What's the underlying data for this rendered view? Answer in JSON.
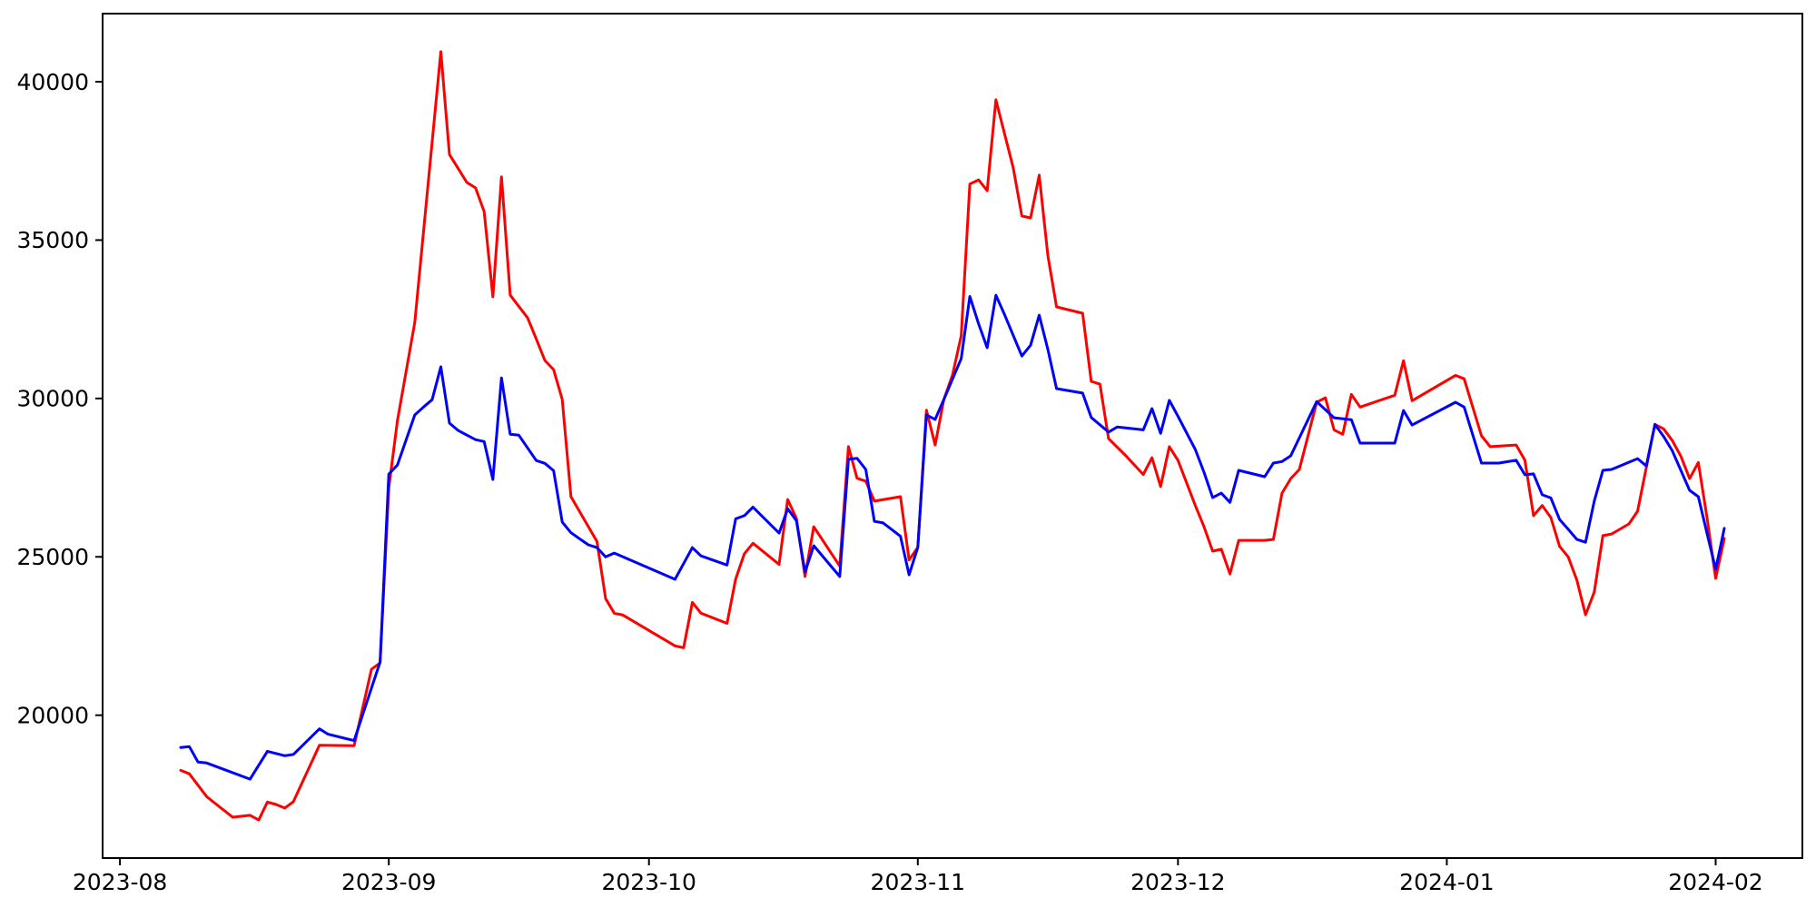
{
  "figure": {
    "background": "#ffffff",
    "plot_border_color": "#000000"
  },
  "chart_data": {
    "type": "line",
    "title": "",
    "xlabel": "",
    "ylabel": "",
    "grid": false,
    "legend": "none",
    "x_axis": {
      "tick_labels": [
        "2023-08",
        "2023-09",
        "2023-10",
        "2023-11",
        "2023-12",
        "2024-01",
        "2024-02"
      ],
      "tick_dates": [
        "2023-08-01",
        "2023-09-01",
        "2023-10-01",
        "2023-11-01",
        "2023-12-01",
        "2024-01-01",
        "2024-02-01"
      ],
      "range_dates": [
        "2023-07-30",
        "2024-02-11"
      ]
    },
    "y_axis": {
      "ticks": [
        20000,
        25000,
        30000,
        35000,
        40000
      ],
      "range": [
        15490,
        42150
      ]
    },
    "series": [
      {
        "name": "red-series",
        "color": "#ff0000",
        "points": [
          [
            "2023-08-08",
            18260
          ],
          [
            "2023-08-09",
            18150
          ],
          [
            "2023-08-11",
            17430
          ],
          [
            "2023-08-12",
            17210
          ],
          [
            "2023-08-14",
            16780
          ],
          [
            "2023-08-16",
            16840
          ],
          [
            "2023-08-17",
            16690
          ],
          [
            "2023-08-18",
            17260
          ],
          [
            "2023-08-19",
            17180
          ],
          [
            "2023-08-20",
            17070
          ],
          [
            "2023-08-21",
            17270
          ],
          [
            "2023-08-24",
            19050
          ],
          [
            "2023-08-28",
            19040
          ],
          [
            "2023-08-30",
            21450
          ],
          [
            "2023-08-31",
            21650
          ],
          [
            "2023-09-01",
            27180
          ],
          [
            "2023-09-02",
            29300
          ],
          [
            "2023-09-04",
            32400
          ],
          [
            "2023-09-07",
            40950
          ],
          [
            "2023-09-08",
            37700
          ],
          [
            "2023-09-09",
            37260
          ],
          [
            "2023-09-10",
            36820
          ],
          [
            "2023-09-11",
            36650
          ],
          [
            "2023-09-12",
            35900
          ],
          [
            "2023-09-13",
            33210
          ],
          [
            "2023-09-14",
            37000
          ],
          [
            "2023-09-15",
            33260
          ],
          [
            "2023-09-17",
            32550
          ],
          [
            "2023-09-18",
            31880
          ],
          [
            "2023-09-19",
            31200
          ],
          [
            "2023-09-20",
            30910
          ],
          [
            "2023-09-21",
            29970
          ],
          [
            "2023-09-22",
            26900
          ],
          [
            "2023-09-23",
            26430
          ],
          [
            "2023-09-25",
            25490
          ],
          [
            "2023-09-26",
            23680
          ],
          [
            "2023-09-27",
            23220
          ],
          [
            "2023-09-28",
            23160
          ],
          [
            "2023-10-04",
            22190
          ],
          [
            "2023-10-05",
            22130
          ],
          [
            "2023-10-06",
            23560
          ],
          [
            "2023-10-07",
            23220
          ],
          [
            "2023-10-10",
            22900
          ],
          [
            "2023-10-11",
            24300
          ],
          [
            "2023-10-12",
            25100
          ],
          [
            "2023-10-13",
            25430
          ],
          [
            "2023-10-16",
            24760
          ],
          [
            "2023-10-17",
            26810
          ],
          [
            "2023-10-18",
            26210
          ],
          [
            "2023-10-19",
            24380
          ],
          [
            "2023-10-20",
            25950
          ],
          [
            "2023-10-23",
            24710
          ],
          [
            "2023-10-24",
            28480
          ],
          [
            "2023-10-25",
            27480
          ],
          [
            "2023-10-26",
            27390
          ],
          [
            "2023-10-27",
            26760
          ],
          [
            "2023-10-30",
            26900
          ],
          [
            "2023-10-31",
            24900
          ],
          [
            "2023-11-01",
            25300
          ],
          [
            "2023-11-02",
            29630
          ],
          [
            "2023-11-03",
            28530
          ],
          [
            "2023-11-04",
            29960
          ],
          [
            "2023-11-05",
            30740
          ],
          [
            "2023-11-06",
            31980
          ],
          [
            "2023-11-07",
            36770
          ],
          [
            "2023-11-08",
            36900
          ],
          [
            "2023-11-09",
            36560
          ],
          [
            "2023-11-10",
            39430
          ],
          [
            "2023-11-12",
            37280
          ],
          [
            "2023-11-13",
            35760
          ],
          [
            "2023-11-14",
            35700
          ],
          [
            "2023-11-15",
            37050
          ],
          [
            "2023-11-16",
            34500
          ],
          [
            "2023-11-17",
            32890
          ],
          [
            "2023-11-20",
            32690
          ],
          [
            "2023-11-21",
            30540
          ],
          [
            "2023-11-22",
            30450
          ],
          [
            "2023-11-23",
            28730
          ],
          [
            "2023-11-25",
            28190
          ],
          [
            "2023-11-27",
            27600
          ],
          [
            "2023-11-28",
            28130
          ],
          [
            "2023-11-29",
            27220
          ],
          [
            "2023-11-30",
            28480
          ],
          [
            "2023-12-01",
            28050
          ],
          [
            "2023-12-03",
            26620
          ],
          [
            "2023-12-04",
            25950
          ],
          [
            "2023-12-05",
            25180
          ],
          [
            "2023-12-06",
            25240
          ],
          [
            "2023-12-07",
            24460
          ],
          [
            "2023-12-08",
            25520
          ],
          [
            "2023-12-11",
            25520
          ],
          [
            "2023-12-12",
            25550
          ],
          [
            "2023-12-13",
            27010
          ],
          [
            "2023-12-14",
            27470
          ],
          [
            "2023-12-15",
            27760
          ],
          [
            "2023-12-17",
            29880
          ],
          [
            "2023-12-18",
            30020
          ],
          [
            "2023-12-19",
            29010
          ],
          [
            "2023-12-20",
            28870
          ],
          [
            "2023-12-21",
            30130
          ],
          [
            "2023-12-22",
            29730
          ],
          [
            "2023-12-26",
            30100
          ],
          [
            "2023-12-27",
            31190
          ],
          [
            "2023-12-28",
            29930
          ],
          [
            "2024-01-02",
            30730
          ],
          [
            "2024-01-03",
            30620
          ],
          [
            "2024-01-05",
            28820
          ],
          [
            "2024-01-06",
            28480
          ],
          [
            "2024-01-09",
            28530
          ],
          [
            "2024-01-10",
            28050
          ],
          [
            "2024-01-11",
            26300
          ],
          [
            "2024-01-12",
            26620
          ],
          [
            "2024-01-13",
            26240
          ],
          [
            "2024-01-14",
            25330
          ],
          [
            "2024-01-15",
            25000
          ],
          [
            "2024-01-16",
            24260
          ],
          [
            "2024-01-17",
            23170
          ],
          [
            "2024-01-18",
            23890
          ],
          [
            "2024-01-19",
            25670
          ],
          [
            "2024-01-20",
            25720
          ],
          [
            "2024-01-22",
            26040
          ],
          [
            "2024-01-23",
            26440
          ],
          [
            "2024-01-25",
            29180
          ],
          [
            "2024-01-26",
            29040
          ],
          [
            "2024-01-27",
            28670
          ],
          [
            "2024-01-28",
            28170
          ],
          [
            "2024-01-29",
            27470
          ],
          [
            "2024-01-30",
            27980
          ],
          [
            "2024-01-31",
            26250
          ],
          [
            "2024-02-01",
            24320
          ],
          [
            "2024-02-02",
            25580
          ]
        ]
      },
      {
        "name": "blue-series",
        "color": "#0000ff",
        "points": [
          [
            "2023-08-08",
            18980
          ],
          [
            "2023-08-09",
            19010
          ],
          [
            "2023-08-10",
            18520
          ],
          [
            "2023-08-11",
            18490
          ],
          [
            "2023-08-16",
            17980
          ],
          [
            "2023-08-18",
            18860
          ],
          [
            "2023-08-20",
            18720
          ],
          [
            "2023-08-21",
            18760
          ],
          [
            "2023-08-24",
            19570
          ],
          [
            "2023-08-25",
            19400
          ],
          [
            "2023-08-28",
            19200
          ],
          [
            "2023-08-31",
            21680
          ],
          [
            "2023-09-01",
            27610
          ],
          [
            "2023-09-02",
            27900
          ],
          [
            "2023-09-04",
            29480
          ],
          [
            "2023-09-05",
            29730
          ],
          [
            "2023-09-06",
            29960
          ],
          [
            "2023-09-07",
            31000
          ],
          [
            "2023-09-08",
            29220
          ],
          [
            "2023-09-09",
            28990
          ],
          [
            "2023-09-11",
            28700
          ],
          [
            "2023-09-12",
            28640
          ],
          [
            "2023-09-13",
            27440
          ],
          [
            "2023-09-14",
            30650
          ],
          [
            "2023-09-15",
            28870
          ],
          [
            "2023-09-16",
            28840
          ],
          [
            "2023-09-18",
            28040
          ],
          [
            "2023-09-19",
            27950
          ],
          [
            "2023-09-20",
            27720
          ],
          [
            "2023-09-21",
            26100
          ],
          [
            "2023-09-22",
            25760
          ],
          [
            "2023-09-24",
            25380
          ],
          [
            "2023-09-25",
            25290
          ],
          [
            "2023-09-26",
            25000
          ],
          [
            "2023-09-27",
            25120
          ],
          [
            "2023-10-04",
            24290
          ],
          [
            "2023-10-06",
            25290
          ],
          [
            "2023-10-07",
            25030
          ],
          [
            "2023-10-10",
            24740
          ],
          [
            "2023-10-11",
            26200
          ],
          [
            "2023-10-12",
            26300
          ],
          [
            "2023-10-13",
            26570
          ],
          [
            "2023-10-16",
            25750
          ],
          [
            "2023-10-17",
            26520
          ],
          [
            "2023-10-18",
            26140
          ],
          [
            "2023-10-19",
            24520
          ],
          [
            "2023-10-20",
            25350
          ],
          [
            "2023-10-23",
            24380
          ],
          [
            "2023-10-24",
            28080
          ],
          [
            "2023-10-25",
            28110
          ],
          [
            "2023-10-26",
            27760
          ],
          [
            "2023-10-27",
            26120
          ],
          [
            "2023-10-28",
            26070
          ],
          [
            "2023-10-30",
            25650
          ],
          [
            "2023-10-31",
            24430
          ],
          [
            "2023-11-01",
            25300
          ],
          [
            "2023-11-02",
            29480
          ],
          [
            "2023-11-03",
            29340
          ],
          [
            "2023-11-04",
            29960
          ],
          [
            "2023-11-06",
            31260
          ],
          [
            "2023-11-07",
            33220
          ],
          [
            "2023-11-08",
            32360
          ],
          [
            "2023-11-09",
            31600
          ],
          [
            "2023-11-10",
            33260
          ],
          [
            "2023-11-11",
            32650
          ],
          [
            "2023-11-13",
            31340
          ],
          [
            "2023-11-14",
            31680
          ],
          [
            "2023-11-15",
            32630
          ],
          [
            "2023-11-16",
            31540
          ],
          [
            "2023-11-17",
            30310
          ],
          [
            "2023-11-20",
            30170
          ],
          [
            "2023-11-21",
            29400
          ],
          [
            "2023-11-23",
            28940
          ],
          [
            "2023-11-24",
            29100
          ],
          [
            "2023-11-27",
            29010
          ],
          [
            "2023-11-28",
            29680
          ],
          [
            "2023-11-29",
            28900
          ],
          [
            "2023-11-30",
            29940
          ],
          [
            "2023-12-01",
            29440
          ],
          [
            "2023-12-03",
            28390
          ],
          [
            "2023-12-04",
            27670
          ],
          [
            "2023-12-05",
            26870
          ],
          [
            "2023-12-06",
            27010
          ],
          [
            "2023-12-07",
            26720
          ],
          [
            "2023-12-08",
            27730
          ],
          [
            "2023-12-11",
            27530
          ],
          [
            "2023-12-12",
            27960
          ],
          [
            "2023-12-13",
            28010
          ],
          [
            "2023-12-14",
            28190
          ],
          [
            "2023-12-17",
            29900
          ],
          [
            "2023-12-19",
            29390
          ],
          [
            "2023-12-21",
            29330
          ],
          [
            "2023-12-22",
            28590
          ],
          [
            "2023-12-26",
            28590
          ],
          [
            "2023-12-27",
            29620
          ],
          [
            "2023-12-28",
            29160
          ],
          [
            "2024-01-02",
            29880
          ],
          [
            "2024-01-03",
            29730
          ],
          [
            "2024-01-05",
            27960
          ],
          [
            "2024-01-07",
            27960
          ],
          [
            "2024-01-09",
            28050
          ],
          [
            "2024-01-10",
            27590
          ],
          [
            "2024-01-11",
            27620
          ],
          [
            "2024-01-12",
            26960
          ],
          [
            "2024-01-13",
            26860
          ],
          [
            "2024-01-14",
            26180
          ],
          [
            "2024-01-15",
            25870
          ],
          [
            "2024-01-16",
            25550
          ],
          [
            "2024-01-17",
            25460
          ],
          [
            "2024-01-18",
            26760
          ],
          [
            "2024-01-19",
            27730
          ],
          [
            "2024-01-20",
            27760
          ],
          [
            "2024-01-23",
            28100
          ],
          [
            "2024-01-24",
            27870
          ],
          [
            "2024-01-25",
            29180
          ],
          [
            "2024-01-26",
            28800
          ],
          [
            "2024-01-27",
            28350
          ],
          [
            "2024-01-29",
            27100
          ],
          [
            "2024-01-30",
            26900
          ],
          [
            "2024-01-31",
            25750
          ],
          [
            "2024-02-01",
            24610
          ],
          [
            "2024-02-02",
            25900
          ]
        ]
      }
    ]
  }
}
